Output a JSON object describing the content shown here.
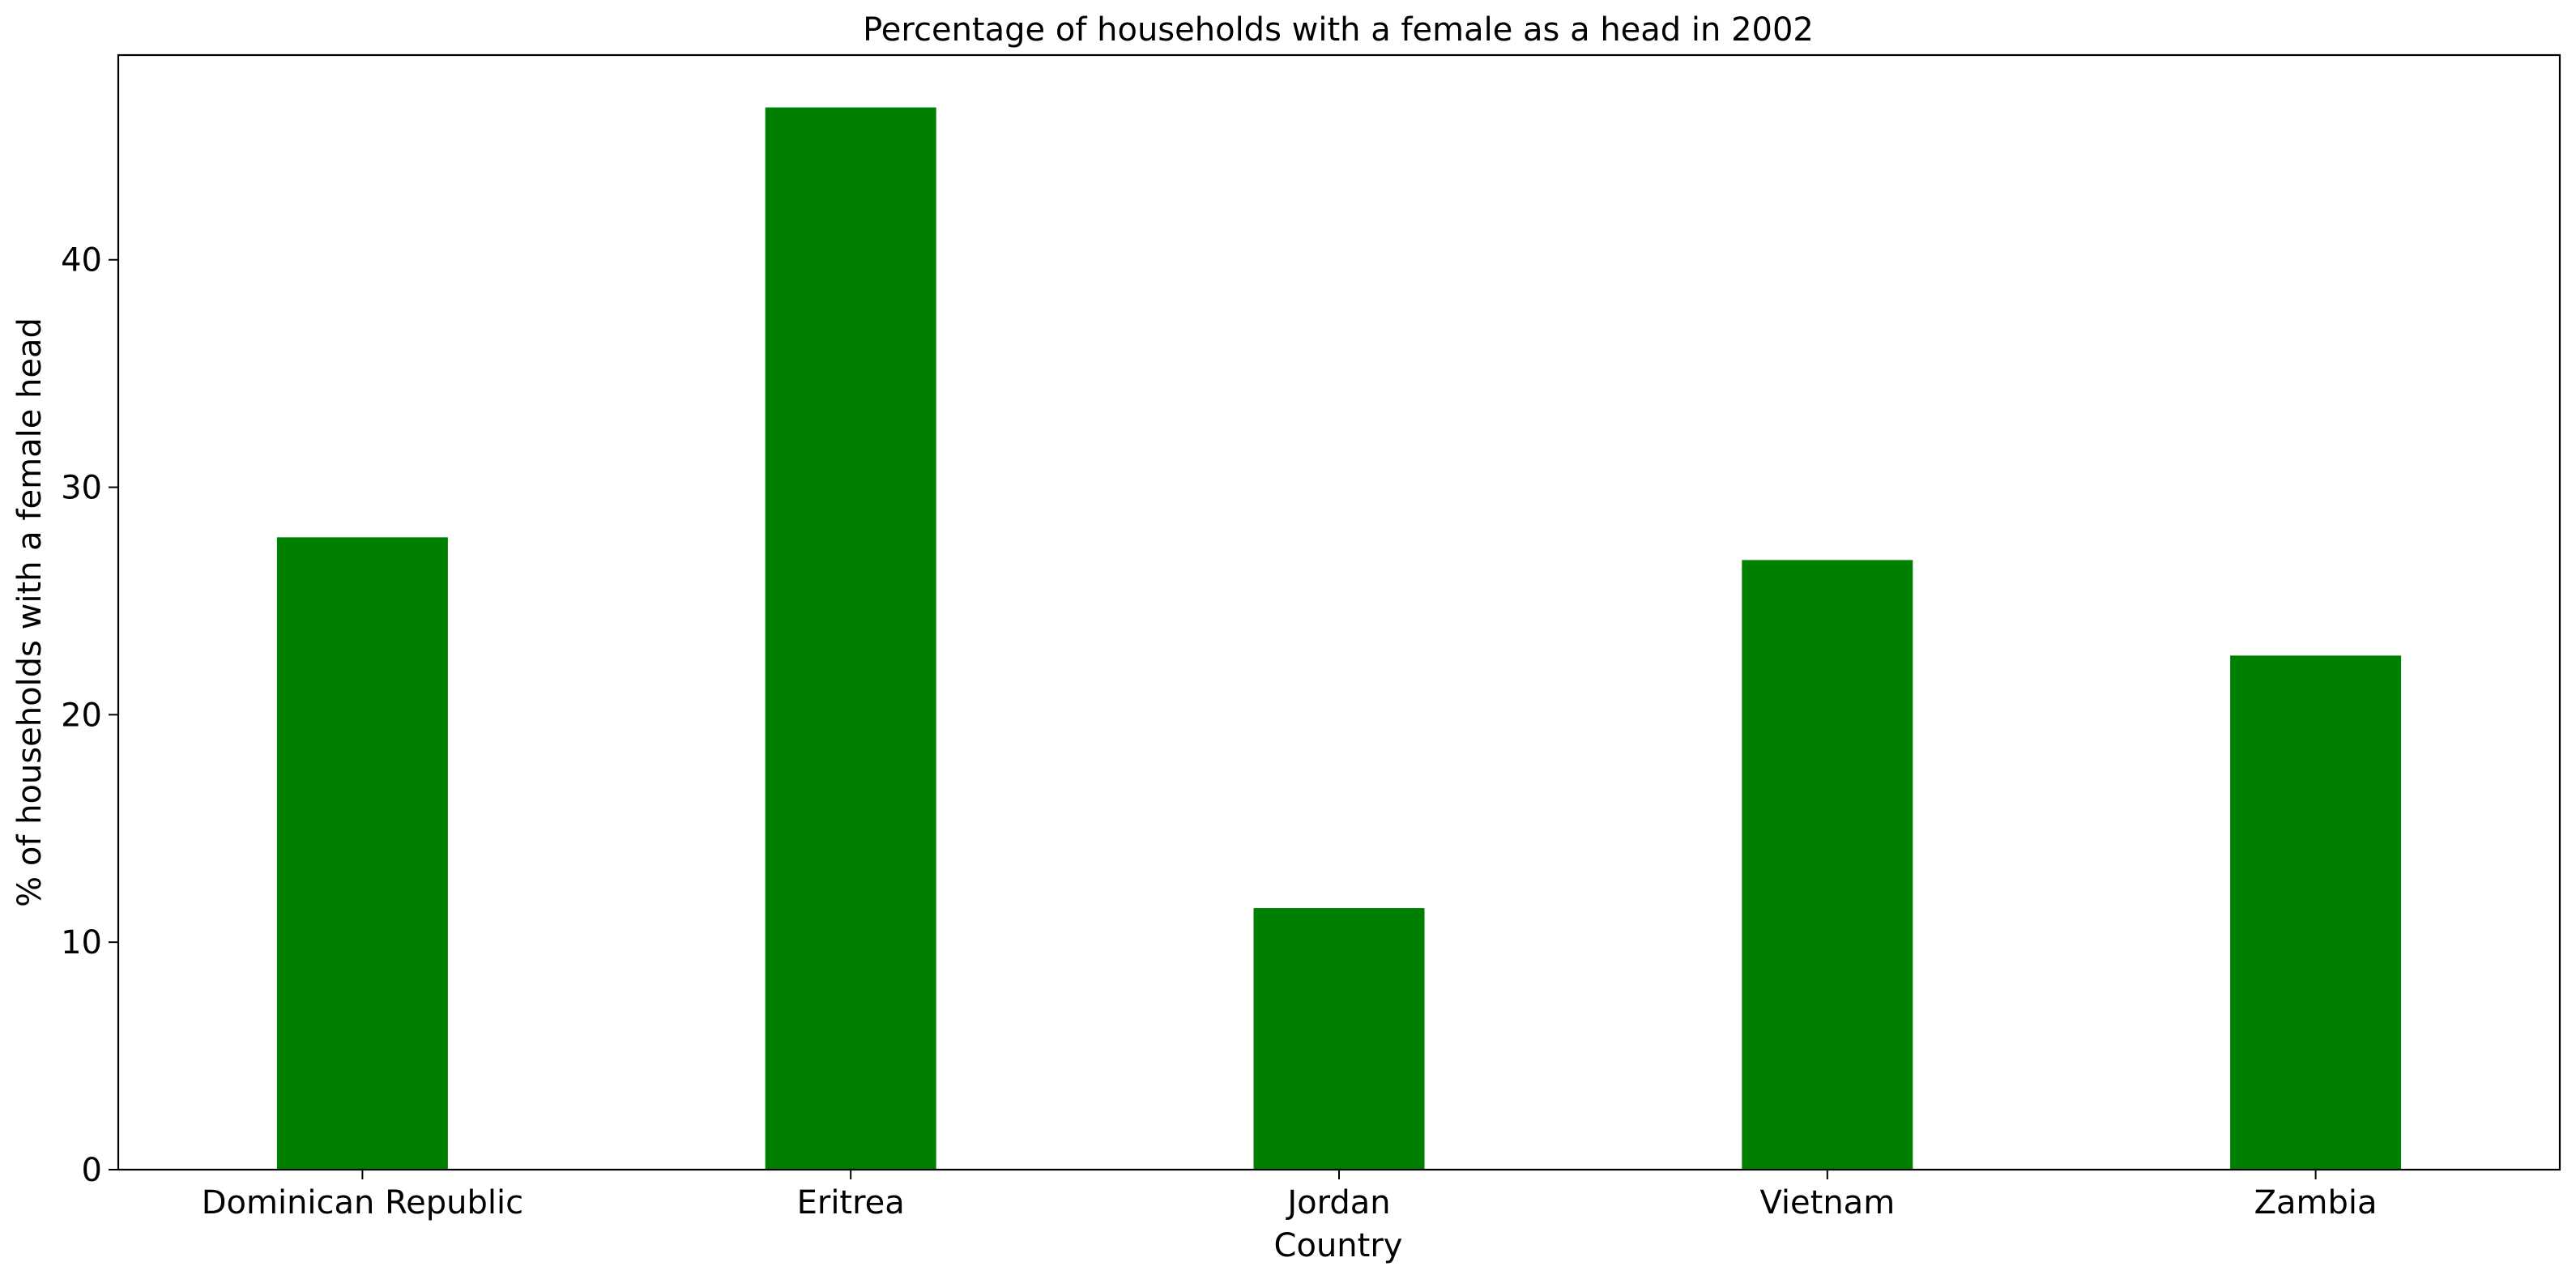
{
  "chart_data": {
    "type": "bar",
    "title": "Percentage of households with a female as a head in 2002",
    "xlabel": "Country",
    "ylabel": "% of households with a female head",
    "categories": [
      "Dominican Republic",
      "Eritrea",
      "Jordan",
      "Vietnam",
      "Zambia"
    ],
    "values": [
      27.8,
      46.7,
      11.5,
      26.8,
      22.6
    ],
    "ylim": [
      0,
      49
    ],
    "yticks": [
      0,
      10,
      20,
      30,
      40
    ],
    "bar_color": "#008000",
    "grid": false,
    "legend": "none"
  }
}
